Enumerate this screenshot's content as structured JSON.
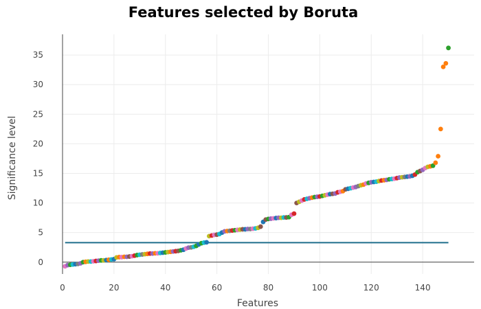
{
  "chart_data": {
    "type": "scatter",
    "title": "Features selected by Boruta",
    "xlabel": "Features",
    "ylabel": "Significance level",
    "xlim": [
      0,
      160
    ],
    "ylim": [
      -2,
      38.5
    ],
    "xticks": [
      0,
      20,
      40,
      60,
      80,
      100,
      120,
      140
    ],
    "yticks": [
      0,
      5,
      10,
      15,
      20,
      25,
      30,
      35
    ],
    "grid": true,
    "legend": "none",
    "threshold_line": {
      "y": 3.3,
      "x_start": 1,
      "x_end": 150,
      "color": "#1f6e8c"
    },
    "palette": [
      "#1f77b4",
      "#ff7f0e",
      "#2ca02c",
      "#d62728",
      "#9467bd",
      "#8c564b",
      "#e377c2",
      "#7f7f7f",
      "#bcbd22",
      "#17becf"
    ],
    "points": [
      [
        1,
        -0.7,
        6
      ],
      [
        2,
        -0.5,
        4
      ],
      [
        3,
        -0.45,
        2
      ],
      [
        4,
        -0.4,
        9
      ],
      [
        5,
        -0.35,
        0
      ],
      [
        6,
        -0.3,
        7
      ],
      [
        7,
        -0.2,
        4
      ],
      [
        8,
        0.0,
        2
      ],
      [
        9,
        0.05,
        1
      ],
      [
        10,
        0.1,
        8
      ],
      [
        11,
        0.1,
        9
      ],
      [
        12,
        0.15,
        6
      ],
      [
        13,
        0.2,
        3
      ],
      [
        14,
        0.25,
        4
      ],
      [
        15,
        0.3,
        2
      ],
      [
        16,
        0.3,
        8
      ],
      [
        17,
        0.35,
        0
      ],
      [
        18,
        0.4,
        1
      ],
      [
        19,
        0.45,
        9
      ],
      [
        20,
        0.5,
        0
      ],
      [
        21,
        0.8,
        8
      ],
      [
        22,
        0.85,
        1
      ],
      [
        23,
        0.85,
        6
      ],
      [
        24,
        0.9,
        1
      ],
      [
        25,
        0.9,
        4
      ],
      [
        26,
        0.95,
        5
      ],
      [
        27,
        1.0,
        6
      ],
      [
        28,
        1.1,
        3
      ],
      [
        29,
        1.2,
        2
      ],
      [
        30,
        1.25,
        9
      ],
      [
        31,
        1.3,
        7
      ],
      [
        32,
        1.35,
        8
      ],
      [
        33,
        1.4,
        1
      ],
      [
        34,
        1.45,
        3
      ],
      [
        35,
        1.45,
        4
      ],
      [
        36,
        1.5,
        1
      ],
      [
        37,
        1.5,
        6
      ],
      [
        38,
        1.55,
        9
      ],
      [
        39,
        1.6,
        0
      ],
      [
        40,
        1.65,
        2
      ],
      [
        41,
        1.7,
        8
      ],
      [
        42,
        1.75,
        1
      ],
      [
        43,
        1.8,
        4
      ],
      [
        44,
        1.85,
        3
      ],
      [
        45,
        1.9,
        5
      ],
      [
        46,
        2.0,
        2
      ],
      [
        47,
        2.1,
        0
      ],
      [
        48,
        2.3,
        6
      ],
      [
        49,
        2.45,
        4
      ],
      [
        50,
        2.5,
        7
      ],
      [
        51,
        2.6,
        9
      ],
      [
        52,
        2.75,
        2
      ],
      [
        53,
        3.0,
        0
      ],
      [
        54,
        3.2,
        2
      ],
      [
        55,
        3.3,
        9
      ],
      [
        56,
        3.35,
        0
      ],
      [
        57,
        4.4,
        8
      ],
      [
        58,
        4.5,
        3
      ],
      [
        59,
        4.6,
        6
      ],
      [
        60,
        4.65,
        5
      ],
      [
        61,
        4.75,
        9
      ],
      [
        62,
        5.0,
        0
      ],
      [
        63,
        5.2,
        4
      ],
      [
        64,
        5.25,
        1
      ],
      [
        65,
        5.3,
        7
      ],
      [
        66,
        5.35,
        3
      ],
      [
        67,
        5.4,
        2
      ],
      [
        68,
        5.45,
        6
      ],
      [
        69,
        5.5,
        8
      ],
      [
        70,
        5.55,
        5
      ],
      [
        71,
        5.55,
        0
      ],
      [
        72,
        5.6,
        4
      ],
      [
        73,
        5.6,
        7
      ],
      [
        74,
        5.65,
        6
      ],
      [
        75,
        5.7,
        9
      ],
      [
        76,
        5.8,
        8
      ],
      [
        77,
        6.0,
        5
      ],
      [
        78,
        6.8,
        0
      ],
      [
        79,
        7.2,
        5
      ],
      [
        80,
        7.3,
        2
      ],
      [
        81,
        7.35,
        4
      ],
      [
        82,
        7.4,
        6
      ],
      [
        83,
        7.45,
        0
      ],
      [
        84,
        7.5,
        4
      ],
      [
        85,
        7.5,
        8
      ],
      [
        86,
        7.55,
        9
      ],
      [
        87,
        7.55,
        5
      ],
      [
        88,
        7.6,
        2
      ],
      [
        89,
        8.0,
        6
      ],
      [
        90,
        8.2,
        3
      ],
      [
        91,
        10.0,
        5
      ],
      [
        92,
        10.2,
        8
      ],
      [
        93,
        10.4,
        6
      ],
      [
        94,
        10.6,
        3
      ],
      [
        95,
        10.7,
        9
      ],
      [
        96,
        10.8,
        4
      ],
      [
        97,
        10.9,
        1
      ],
      [
        98,
        11.0,
        2
      ],
      [
        99,
        11.05,
        4
      ],
      [
        100,
        11.1,
        3
      ],
      [
        101,
        11.2,
        2
      ],
      [
        102,
        11.3,
        8
      ],
      [
        103,
        11.4,
        6
      ],
      [
        104,
        11.5,
        0
      ],
      [
        105,
        11.55,
        5
      ],
      [
        106,
        11.6,
        4
      ],
      [
        107,
        11.8,
        3
      ],
      [
        108,
        11.9,
        6
      ],
      [
        109,
        12.0,
        1
      ],
      [
        110,
        12.3,
        5
      ],
      [
        111,
        12.4,
        0
      ],
      [
        112,
        12.5,
        9
      ],
      [
        113,
        12.6,
        6
      ],
      [
        114,
        12.7,
        4
      ],
      [
        115,
        12.85,
        7
      ],
      [
        116,
        13.0,
        8
      ],
      [
        117,
        13.1,
        1
      ],
      [
        118,
        13.3,
        6
      ],
      [
        119,
        13.4,
        2
      ],
      [
        120,
        13.5,
        4
      ],
      [
        121,
        13.55,
        0
      ],
      [
        122,
        13.6,
        9
      ],
      [
        123,
        13.7,
        8
      ],
      [
        124,
        13.8,
        3
      ],
      [
        125,
        13.85,
        1
      ],
      [
        126,
        13.9,
        4
      ],
      [
        127,
        14.0,
        2
      ],
      [
        128,
        14.05,
        9
      ],
      [
        129,
        14.1,
        6
      ],
      [
        130,
        14.2,
        3
      ],
      [
        131,
        14.3,
        4
      ],
      [
        132,
        14.35,
        8
      ],
      [
        133,
        14.4,
        7
      ],
      [
        134,
        14.45,
        0
      ],
      [
        135,
        14.5,
        4
      ],
      [
        136,
        14.6,
        0
      ],
      [
        137,
        14.8,
        3
      ],
      [
        138,
        15.2,
        2
      ],
      [
        139,
        15.4,
        5
      ],
      [
        140,
        15.6,
        4
      ],
      [
        141,
        15.9,
        6
      ],
      [
        142,
        16.1,
        8
      ],
      [
        143,
        16.2,
        1
      ],
      [
        144,
        16.3,
        2
      ],
      [
        145,
        16.8,
        1
      ],
      [
        146,
        17.9,
        1
      ],
      [
        147,
        22.5,
        1
      ],
      [
        148,
        33.0,
        1
      ],
      [
        149,
        33.6,
        1
      ],
      [
        150,
        36.2,
        2
      ]
    ]
  }
}
